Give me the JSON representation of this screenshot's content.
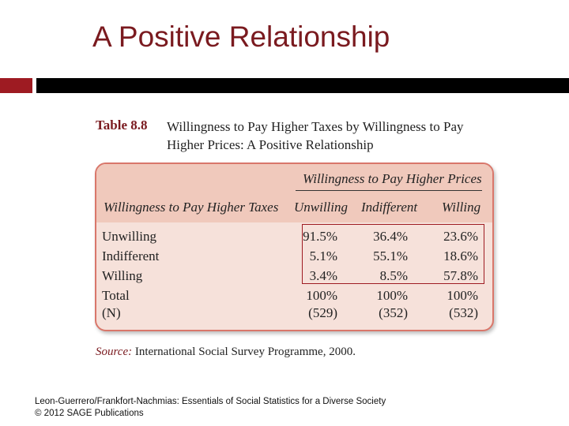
{
  "slide": {
    "title": "A Positive Relationship"
  },
  "table": {
    "number": "Table 8.8",
    "caption": "Willingness to Pay Higher Taxes by Willingness to Pay Higher Prices: A Positive Relationship",
    "spanning_header": "Willingness to Pay Higher Prices",
    "row_header": "Willingness to Pay Higher Taxes",
    "columns": [
      "Unwilling",
      "Indifferent",
      "Willing"
    ],
    "rows": [
      {
        "label": "Unwilling",
        "values": [
          "91.5%",
          "36.4%",
          "23.6%"
        ]
      },
      {
        "label": "Indifferent",
        "values": [
          "5.1%",
          "55.1%",
          "18.6%"
        ]
      },
      {
        "label": "Willing",
        "values": [
          "3.4%",
          "8.5%",
          "57.8%"
        ]
      },
      {
        "label": "Total",
        "values": [
          "100%",
          "100%",
          "100%"
        ]
      },
      {
        "label": "(N)",
        "values": [
          "(529)",
          "(352)",
          "(532)"
        ]
      }
    ]
  },
  "source": {
    "label": "Source:",
    "text": "International Social Survey Programme, 2000."
  },
  "footer": {
    "line1": "Leon-Guerrero/Frankfort-Nachmias: Essentials of Social Statistics for a Diverse Society",
    "line2": "© 2012 SAGE Publications"
  },
  "colors": {
    "title": "#7a1a1f",
    "accent_bar": "#9e1b22",
    "table_background": "#f6e1da",
    "table_header": "#f0c9bc",
    "table_border": "#d9776b"
  }
}
